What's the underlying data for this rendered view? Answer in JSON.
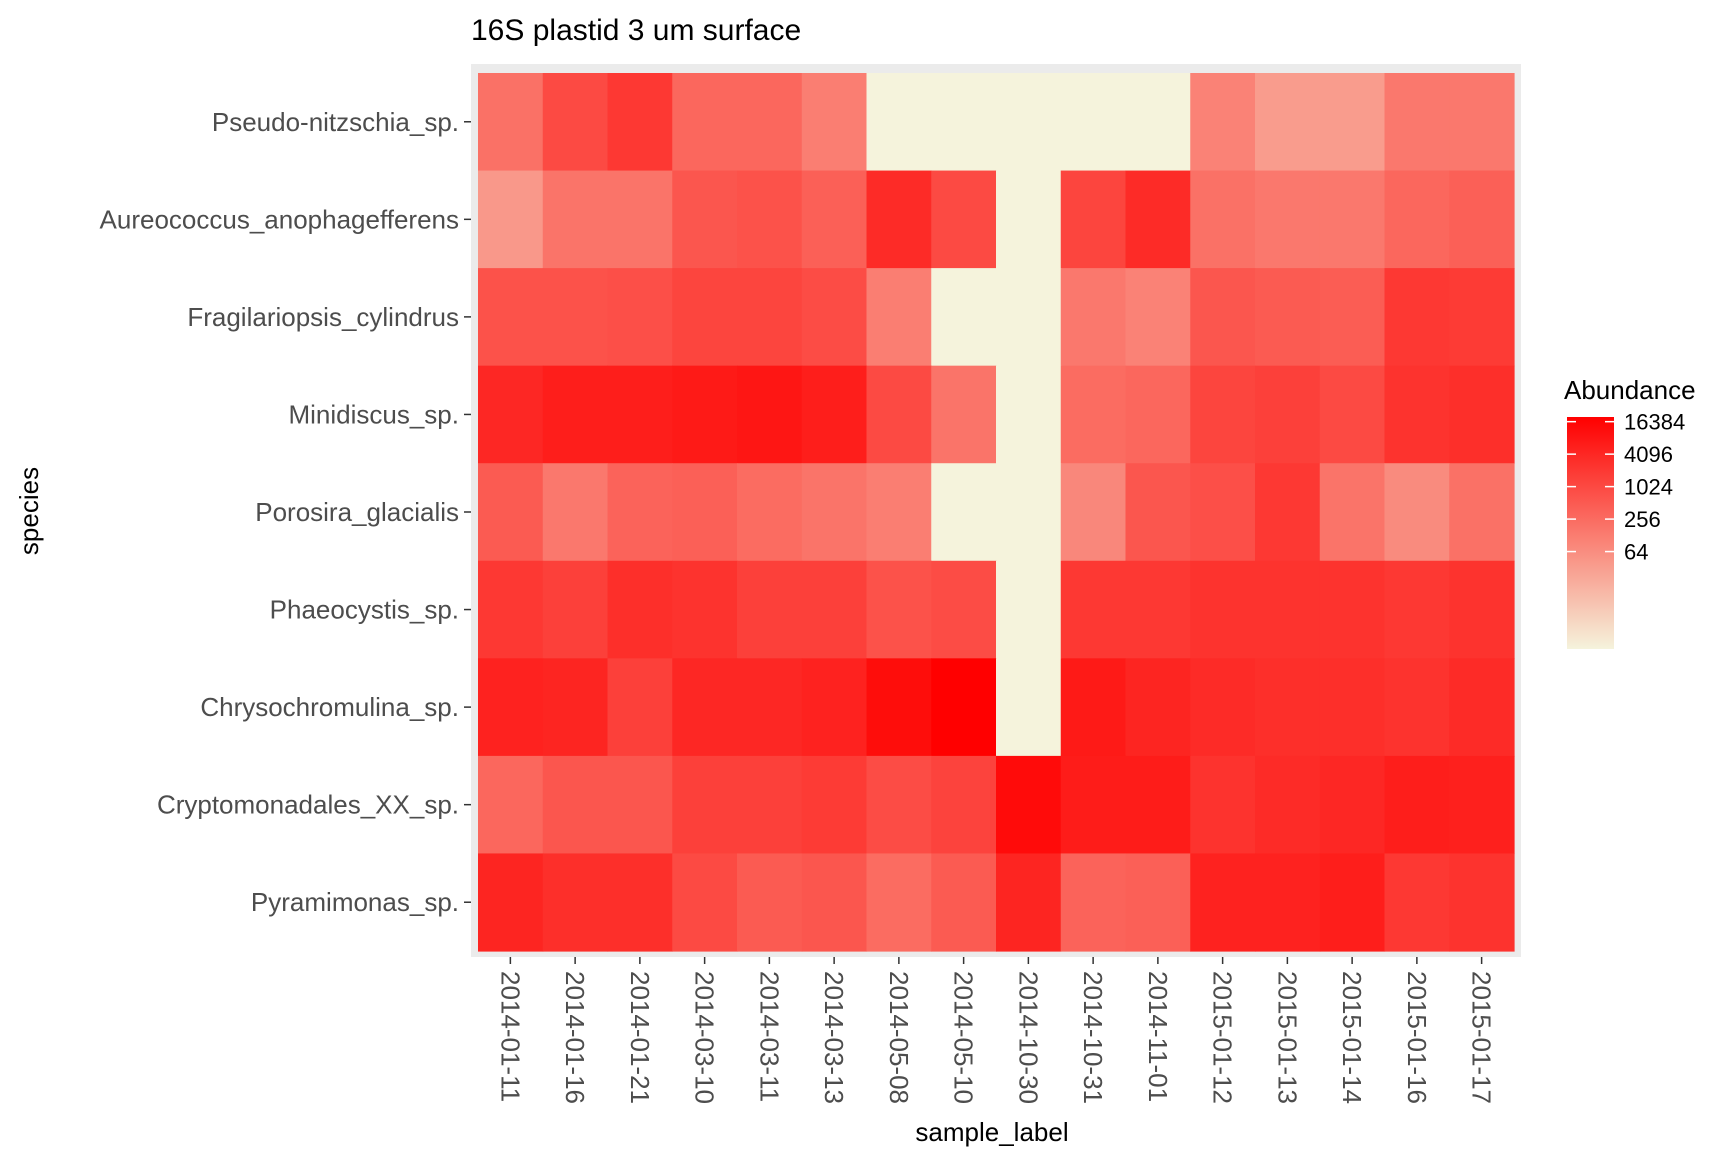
{
  "chart_data": {
    "type": "heatmap",
    "title": "16S plastid 3 um surface",
    "xlabel": "sample_label",
    "ylabel": "species",
    "x": [
      "2014-01-11",
      "2014-01-16",
      "2014-01-21",
      "2014-03-10",
      "2014-03-11",
      "2014-03-13",
      "2014-05-08",
      "2014-05-10",
      "2014-10-30",
      "2014-10-31",
      "2014-11-01",
      "2015-01-12",
      "2015-01-13",
      "2015-01-14",
      "2015-01-16",
      "2015-01-17"
    ],
    "y": [
      "Pseudo-nitzschia_sp.",
      "Aureococcus_anophagefferens",
      "Fragilariopsis_cylindrus",
      "Minidiscus_sp.",
      "Porosira_glacialis",
      "Phaeocystis_sp.",
      "Chrysochromulina_sp.",
      "Cryptomonadales_XX_sp.",
      "Pyramimonas_sp."
    ],
    "values": [
      [
        200,
        1000,
        2000,
        300,
        300,
        120,
        0,
        0,
        0,
        0,
        0,
        100,
        35,
        35,
        150,
        150
      ],
      [
        40,
        180,
        180,
        600,
        700,
        400,
        3500,
        1000,
        0,
        1200,
        3500,
        200,
        150,
        150,
        300,
        400
      ],
      [
        700,
        700,
        800,
        1200,
        1200,
        900,
        120,
        0,
        0,
        150,
        100,
        600,
        500,
        450,
        2000,
        1800
      ],
      [
        4000,
        6000,
        6000,
        7000,
        8000,
        6000,
        1000,
        180,
        0,
        250,
        300,
        1200,
        1500,
        1000,
        2500,
        3000
      ],
      [
        500,
        150,
        350,
        400,
        250,
        180,
        120,
        0,
        0,
        80,
        600,
        800,
        2000,
        180,
        70,
        200
      ],
      [
        2000,
        1500,
        3000,
        2500,
        1500,
        1500,
        700,
        900,
        0,
        2000,
        2000,
        2500,
        2500,
        2500,
        2000,
        2500
      ],
      [
        5000,
        4500,
        1500,
        4000,
        4000,
        5000,
        12000,
        20000,
        0,
        7000,
        4500,
        3500,
        3000,
        3000,
        2500,
        3500
      ],
      [
        300,
        600,
        600,
        1500,
        1500,
        1800,
        900,
        1300,
        13000,
        6500,
        6500,
        2500,
        3500,
        4000,
        6000,
        5500
      ],
      [
        4500,
        3000,
        3000,
        1000,
        500,
        600,
        250,
        500,
        4500,
        350,
        400,
        5000,
        5000,
        6000,
        2000,
        2500
      ]
    ],
    "legend": {
      "title": "Abundance",
      "ticks": [
        16384,
        4096,
        1024,
        256,
        64
      ],
      "tick_labels": [
        "16384",
        "4096",
        "1024",
        "256",
        "64"
      ],
      "position": "right",
      "scale": "log2"
    },
    "colors": {
      "low": "#f5f3dc",
      "high": "#ff0000",
      "panel_background": "#ebebeb"
    }
  }
}
